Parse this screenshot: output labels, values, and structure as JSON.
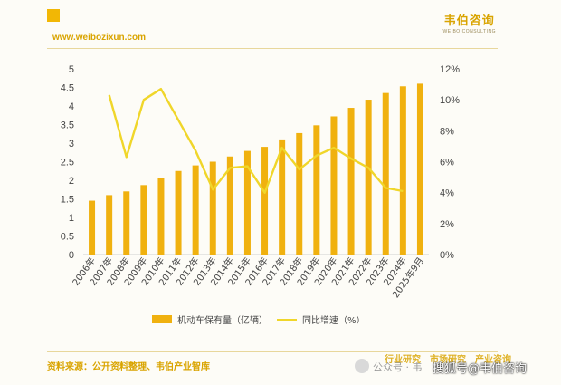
{
  "header": {
    "brand": "韦伯咨询",
    "brand_en": "WEIBO CONSULTING",
    "website": "www.weibozixun.com"
  },
  "footer": {
    "source": "资料来源：公开资料整理、韦伯产业智库",
    "tags": [
      "行业研究",
      "市场研究",
      "产业咨询"
    ],
    "watermark_wechat": "公众号 · 韦",
    "watermark_sohu": "搜狐号@韦伯咨询"
  },
  "colors": {
    "bar": "#f0b10f",
    "line": "#f0d62a",
    "accent": "#d9a400"
  },
  "chart_data": {
    "type": "bar",
    "categories": [
      "2006年",
      "2007年",
      "2008年",
      "2009年",
      "2010年",
      "2011年",
      "2012年",
      "2013年",
      "2014年",
      "2015年",
      "2016年",
      "2017年",
      "2018年",
      "2019年",
      "2020年",
      "2021年",
      "2022年",
      "2023年",
      "2024年",
      "2025年9月"
    ],
    "series": [
      {
        "name": "机动车保有量（亿辆）",
        "type": "bar",
        "axis": "left",
        "values": [
          1.45,
          1.6,
          1.7,
          1.87,
          2.07,
          2.25,
          2.4,
          2.5,
          2.64,
          2.79,
          2.9,
          3.1,
          3.27,
          3.48,
          3.72,
          3.95,
          4.17,
          4.35,
          4.53,
          4.6
        ]
      },
      {
        "name": "同比增速（%）",
        "type": "line",
        "axis": "right",
        "values": [
          null,
          10.3,
          6.3,
          10.0,
          10.7,
          8.7,
          6.7,
          4.2,
          5.6,
          5.7,
          4.0,
          6.9,
          5.5,
          6.4,
          6.9,
          6.2,
          5.6,
          4.3,
          4.1,
          null
        ]
      }
    ],
    "ylim_left": [
      0,
      5
    ],
    "yticks_left": [
      "0",
      "0.5",
      "1",
      "1.5",
      "2",
      "2.5",
      "3",
      "3.5",
      "4",
      "4.5",
      "5"
    ],
    "ylim_right": [
      0,
      12
    ],
    "yticks_right": [
      "0%",
      "2%",
      "4%",
      "6%",
      "8%",
      "10%",
      "12%"
    ],
    "grid": false,
    "legend_position": "bottom"
  }
}
